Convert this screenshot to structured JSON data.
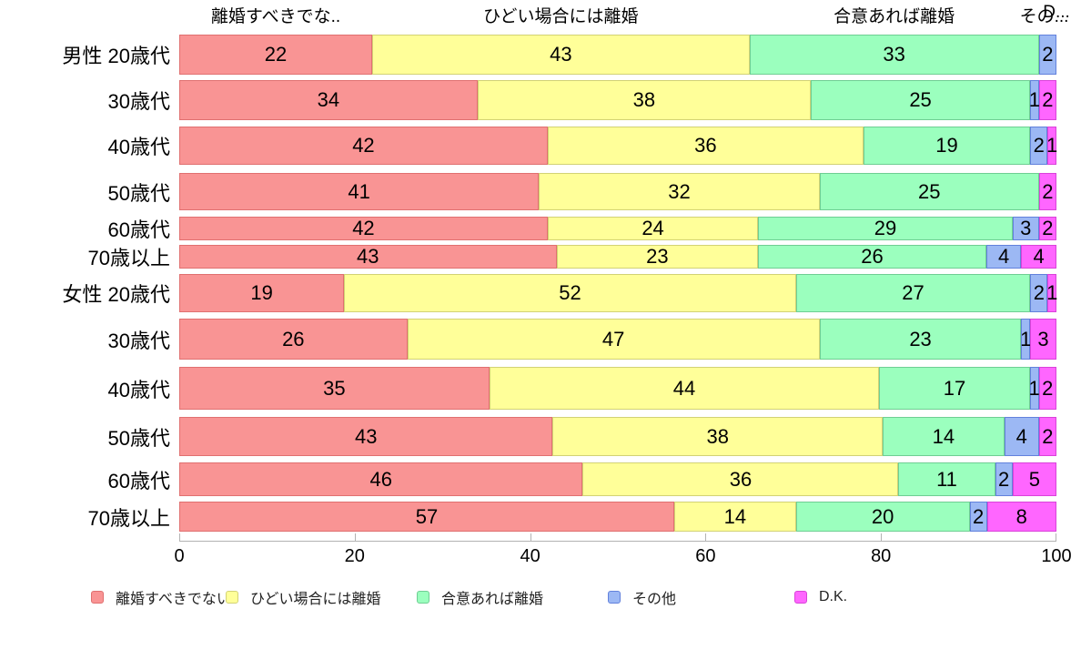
{
  "chart_data": {
    "type": "bar",
    "stacked": true,
    "orientation": "horizontal",
    "title": "",
    "xlabel": "",
    "ylabel": "",
    "xlim": [
      0,
      100
    ],
    "x_ticks": [
      "0",
      "20",
      "40",
      "60",
      "80",
      "100"
    ],
    "grid": false,
    "legend_position": "bottom",
    "categories": [
      "男性 20歳代",
      "30歳代",
      "40歳代",
      "50歳代",
      "60歳代",
      "70歳以上",
      "女性 20歳代",
      "30歳代",
      "40歳代",
      "50歳代",
      "60歳代",
      "70歳以上"
    ],
    "series": [
      {
        "name": "離婚すべきでない",
        "color": "#F99494",
        "border_color": "#E07070",
        "values": [
          22,
          34,
          42,
          41,
          42,
          43,
          19,
          26,
          35,
          43,
          46,
          57
        ]
      },
      {
        "name": "ひどい場合には離婚",
        "color": "#FFFF99",
        "border_color": "#D2D275",
        "values": [
          43,
          38,
          36,
          32,
          24,
          23,
          52,
          47,
          44,
          38,
          36,
          14
        ]
      },
      {
        "name": "合意あれば離婚",
        "color": "#9BFFBE",
        "border_color": "#6FCE93",
        "values": [
          33,
          25,
          19,
          25,
          29,
          26,
          27,
          23,
          17,
          14,
          11,
          20
        ]
      },
      {
        "name": "その他",
        "color": "#9CB8F4",
        "border_color": "#6281DC",
        "values": [
          2,
          1,
          2,
          0,
          3,
          4,
          2,
          1,
          1,
          4,
          2,
          2
        ]
      },
      {
        "name": "D.K.",
        "color": "#FF66FF",
        "border_color": "#D943D9",
        "values": [
          0,
          2,
          1,
          2,
          2,
          4,
          1,
          3,
          2,
          2,
          5,
          8
        ]
      }
    ],
    "column_headers": [
      "離婚すべきでな..",
      "ひどい場合には離婚",
      "合意あれば離婚",
      "その...",
      "D..."
    ],
    "legend_items": [
      "離婚すべきでない",
      "ひどい場合には離婚",
      "合意あれば離婚",
      "その他",
      "D.K."
    ]
  }
}
